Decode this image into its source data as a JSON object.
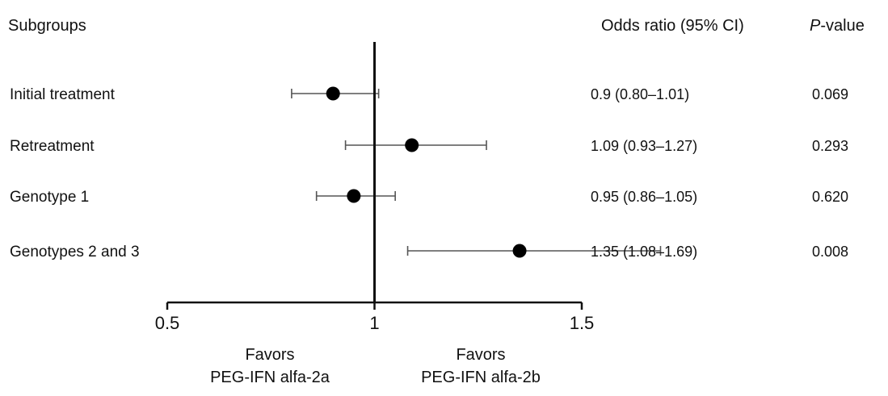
{
  "chart_data": {
    "type": "forest",
    "headers": {
      "subgroups": "Subgroups",
      "or": "Odds ratio (95% CI)",
      "p_italic": "P",
      "p_rest": "-value"
    },
    "rows": [
      {
        "label": "Initial treatment",
        "or": 0.9,
        "lo": 0.8,
        "hi": 1.01,
        "or_text": "0.9 (0.80–1.01)",
        "p": "0.069"
      },
      {
        "label": "Retreatment",
        "or": 1.09,
        "lo": 0.93,
        "hi": 1.27,
        "or_text": "1.09 (0.93–1.27)",
        "p": "0.293"
      },
      {
        "label": "Genotype 1",
        "or": 0.95,
        "lo": 0.86,
        "hi": 1.05,
        "or_text": "0.95 (0.86–1.05)",
        "p": "0.620"
      },
      {
        "label": "Genotypes 2 and 3",
        "or": 1.35,
        "lo": 1.08,
        "hi": 1.69,
        "or_text": "1.35 (1.08–1.69)",
        "p": "0.008"
      }
    ],
    "x_axis": {
      "min": 0.5,
      "max": 1.5,
      "reference": 1,
      "ticks": [
        0.5,
        1,
        1.5
      ],
      "tick_labels": [
        "0.5",
        "1",
        "1.5"
      ]
    },
    "favors": {
      "left_line1": "Favors",
      "left_line2": "PEG-IFN alfa-2a",
      "right_line1": "Favors",
      "right_line2": "PEG-IFN alfa-2b"
    },
    "colors": {
      "marker": "#000000",
      "ci_line": "#555555",
      "axis": "#111111"
    }
  }
}
